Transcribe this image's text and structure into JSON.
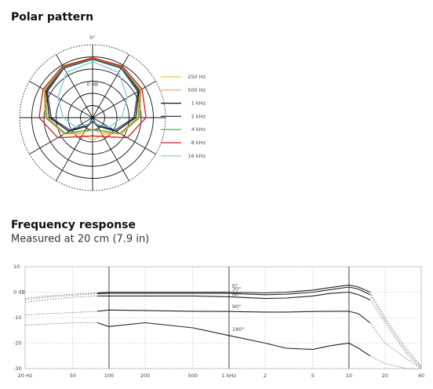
{
  "chart_data": [
    {
      "type": "polar",
      "title": "Polar pattern",
      "angle_label": "0°",
      "x": [
        0,
        30,
        60,
        90,
        120,
        150,
        180,
        210,
        240,
        270,
        300,
        330
      ],
      "rlim": [
        -30,
        30
      ],
      "rgrid": [
        -20,
        -10,
        0,
        10,
        20,
        30
      ],
      "rticks": [
        {
          "value": 0,
          "label": "0 dB"
        }
      ],
      "series": [
        {
          "name": "250 Hz",
          "color": "#e8c84a",
          "values": [
            19,
            18.5,
            15,
            7,
            -4,
            -14,
            -11,
            -14,
            -4,
            7,
            15,
            18.5
          ]
        },
        {
          "name": "500 Hz",
          "color": "#f0a060",
          "values": [
            19.5,
            19,
            16,
            9,
            -3,
            -16,
            -20,
            -16,
            -3,
            9,
            16,
            19
          ]
        },
        {
          "name": "1 kHz",
          "color": "#111111",
          "values": [
            19,
            18,
            14,
            5.5,
            -7.5,
            -22,
            -27,
            -22,
            -7.5,
            5.5,
            14,
            18
          ]
        },
        {
          "name": "2 kHz",
          "color": "#2a3560",
          "values": [
            18,
            17,
            13,
            4,
            -9,
            -24,
            -28,
            -24,
            -9,
            4,
            13,
            17
          ]
        },
        {
          "name": "4 kHz",
          "color": "#5a9a3a",
          "values": [
            18.5,
            18,
            15,
            8,
            -4,
            -18,
            -20,
            -18,
            -4,
            8,
            15,
            18
          ]
        },
        {
          "name": "8 kHz",
          "color": "#d02020",
          "values": [
            19,
            19,
            17,
            14,
            3,
            -12,
            -15,
            -12,
            3,
            14,
            17,
            19
          ]
        },
        {
          "name": "16 kHz",
          "color": "#7ec8e0",
          "values": [
            16,
            13,
            3,
            -6,
            -14,
            -24,
            -28,
            -24,
            -14,
            -6,
            3,
            13
          ]
        }
      ]
    },
    {
      "type": "line",
      "title": "Frequency response",
      "subtitle": "Measured at 20 cm (7.9 in)",
      "log_x": true,
      "solid_xlim": [
        80,
        15000
      ],
      "x": [
        20,
        30,
        50,
        80,
        100,
        200,
        500,
        1000,
        2000,
        3000,
        5000,
        7000,
        10000,
        12000,
        15000,
        20000,
        30000,
        40000
      ],
      "xlim": [
        20,
        40000
      ],
      "xticks": [
        {
          "value": 20,
          "label": "20 Hz"
        },
        50,
        100,
        200,
        500,
        {
          "value": 1000,
          "label": "1 kHz"
        },
        {
          "value": 2000,
          "label": "2"
        },
        {
          "value": 5000,
          "label": "5"
        },
        {
          "value": 10000,
          "label": "10"
        },
        {
          "value": 20000,
          "label": "20"
        },
        {
          "value": 40000,
          "label": "40"
        }
      ],
      "major_xgrid": [
        100,
        1000,
        10000
      ],
      "ylim": [
        -30,
        10
      ],
      "yticks": [
        10,
        {
          "value": 0,
          "label": "0 dB"
        },
        -10,
        -20,
        -30
      ],
      "series": [
        {
          "name": "0°",
          "color": "#222222",
          "values": [
            -2.5,
            -1.5,
            -0.8,
            -0.3,
            0,
            0,
            0,
            0,
            -0.3,
            0,
            0.8,
            1.8,
            2.8,
            2,
            0,
            -10,
            -22,
            -29
          ]
        },
        {
          "name": "30°",
          "color": "#222222",
          "values": [
            -3,
            -2,
            -1.2,
            -0.6,
            -0.5,
            -0.5,
            -0.5,
            -0.5,
            -1,
            -0.8,
            0,
            1,
            2,
            1.2,
            -1,
            -11,
            -23,
            -29.5
          ]
        },
        {
          "name": "60°",
          "color": "#222222",
          "values": [
            -4,
            -3,
            -2,
            -1.5,
            -1.5,
            -1.5,
            -1.5,
            -1.8,
            -2.5,
            -2.3,
            -1.5,
            -0.5,
            0,
            -1,
            -3,
            -12,
            -24,
            -30
          ]
        },
        {
          "name": "90°",
          "color": "#222222",
          "values": [
            -9,
            -8.5,
            -8,
            -7.5,
            -7,
            -7.2,
            -7.5,
            -7.6,
            -7.8,
            -7.8,
            -7.6,
            -7.5,
            -7.5,
            -8.5,
            -12,
            -20,
            -26,
            -30
          ]
        },
        {
          "name": "180°",
          "color": "#222222",
          "values": [
            -13,
            -12.5,
            -12,
            -12,
            -13.5,
            -12,
            -14,
            -17,
            -20,
            -22,
            -22.5,
            -21,
            -20,
            -22,
            -25,
            -28,
            -30,
            -30
          ]
        }
      ]
    }
  ]
}
